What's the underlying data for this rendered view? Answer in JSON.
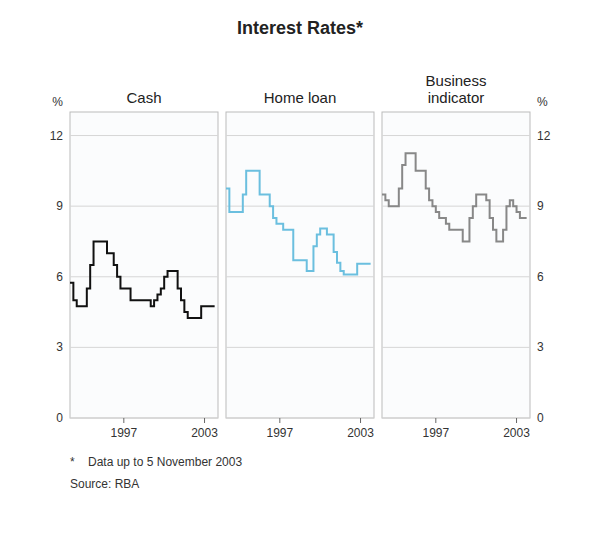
{
  "chart_data": {
    "type": "line",
    "line_style": "step",
    "title": "Interest Rates*",
    "ylabel": "%",
    "annotations": [
      "*    Data up to 5 November 2003",
      "Source: RBA"
    ],
    "x": [
      1993.0,
      1993.25,
      1993.5,
      1993.75,
      1994.0,
      1994.25,
      1994.5,
      1994.75,
      1995.0,
      1995.25,
      1995.5,
      1995.75,
      1996.0,
      1996.25,
      1996.5,
      1996.75,
      1997.0,
      1997.25,
      1997.5,
      1997.75,
      1998.0,
      1998.25,
      1998.5,
      1998.75,
      1999.0,
      1999.25,
      1999.5,
      1999.75,
      2000.0,
      2000.25,
      2000.5,
      2000.75,
      2001.0,
      2001.25,
      2001.5,
      2001.75,
      2002.0,
      2002.25,
      2002.5,
      2002.75,
      2003.0,
      2003.25,
      2003.5,
      2003.75
    ],
    "series": [
      {
        "name": "Cash",
        "color": "#111111",
        "values": [
          5.75,
          5.0,
          4.75,
          4.75,
          4.75,
          5.5,
          6.5,
          7.5,
          7.5,
          7.5,
          7.5,
          7.0,
          7.0,
          6.5,
          6.0,
          5.5,
          5.5,
          5.5,
          5.0,
          5.0,
          5.0,
          5.0,
          5.0,
          5.0,
          4.75,
          5.0,
          5.25,
          5.5,
          6.0,
          6.25,
          6.25,
          6.25,
          5.5,
          5.0,
          4.5,
          4.25,
          4.25,
          4.25,
          4.25,
          4.75,
          4.75,
          4.75,
          4.75,
          4.75
        ]
      },
      {
        "name": "Home loan",
        "color": "#6bbfdf",
        "values": [
          9.75,
          8.75,
          8.75,
          8.75,
          8.75,
          9.5,
          10.5,
          10.5,
          10.5,
          10.5,
          9.5,
          9.5,
          9.5,
          9.0,
          8.5,
          8.25,
          8.25,
          8.0,
          8.0,
          8.0,
          6.7,
          6.7,
          6.7,
          6.7,
          6.25,
          6.25,
          7.3,
          7.8,
          8.05,
          8.05,
          7.8,
          7.8,
          7.05,
          6.6,
          6.25,
          6.1,
          6.1,
          6.1,
          6.1,
          6.55,
          6.55,
          6.55,
          6.55,
          6.55
        ]
      },
      {
        "name": "Business\nindicator",
        "color": "#888888",
        "values": [
          9.5,
          9.25,
          9.0,
          9.0,
          9.0,
          9.75,
          10.75,
          11.25,
          11.25,
          11.25,
          10.5,
          10.5,
          10.5,
          9.75,
          9.25,
          9.0,
          8.75,
          8.5,
          8.5,
          8.25,
          8.0,
          8.0,
          8.0,
          8.0,
          7.5,
          7.5,
          8.5,
          9.0,
          9.5,
          9.5,
          9.5,
          9.25,
          8.5,
          8.0,
          7.5,
          7.5,
          8.0,
          9.0,
          9.25,
          9.0,
          8.75,
          8.5,
          8.5,
          8.5
        ]
      }
    ],
    "xlim": [
      1993.0,
      2004.0
    ],
    "xticks": [
      1997,
      2003
    ],
    "ylim": [
      0,
      13
    ],
    "yticks": [
      0,
      3,
      6,
      9,
      12
    ],
    "grid": true
  }
}
